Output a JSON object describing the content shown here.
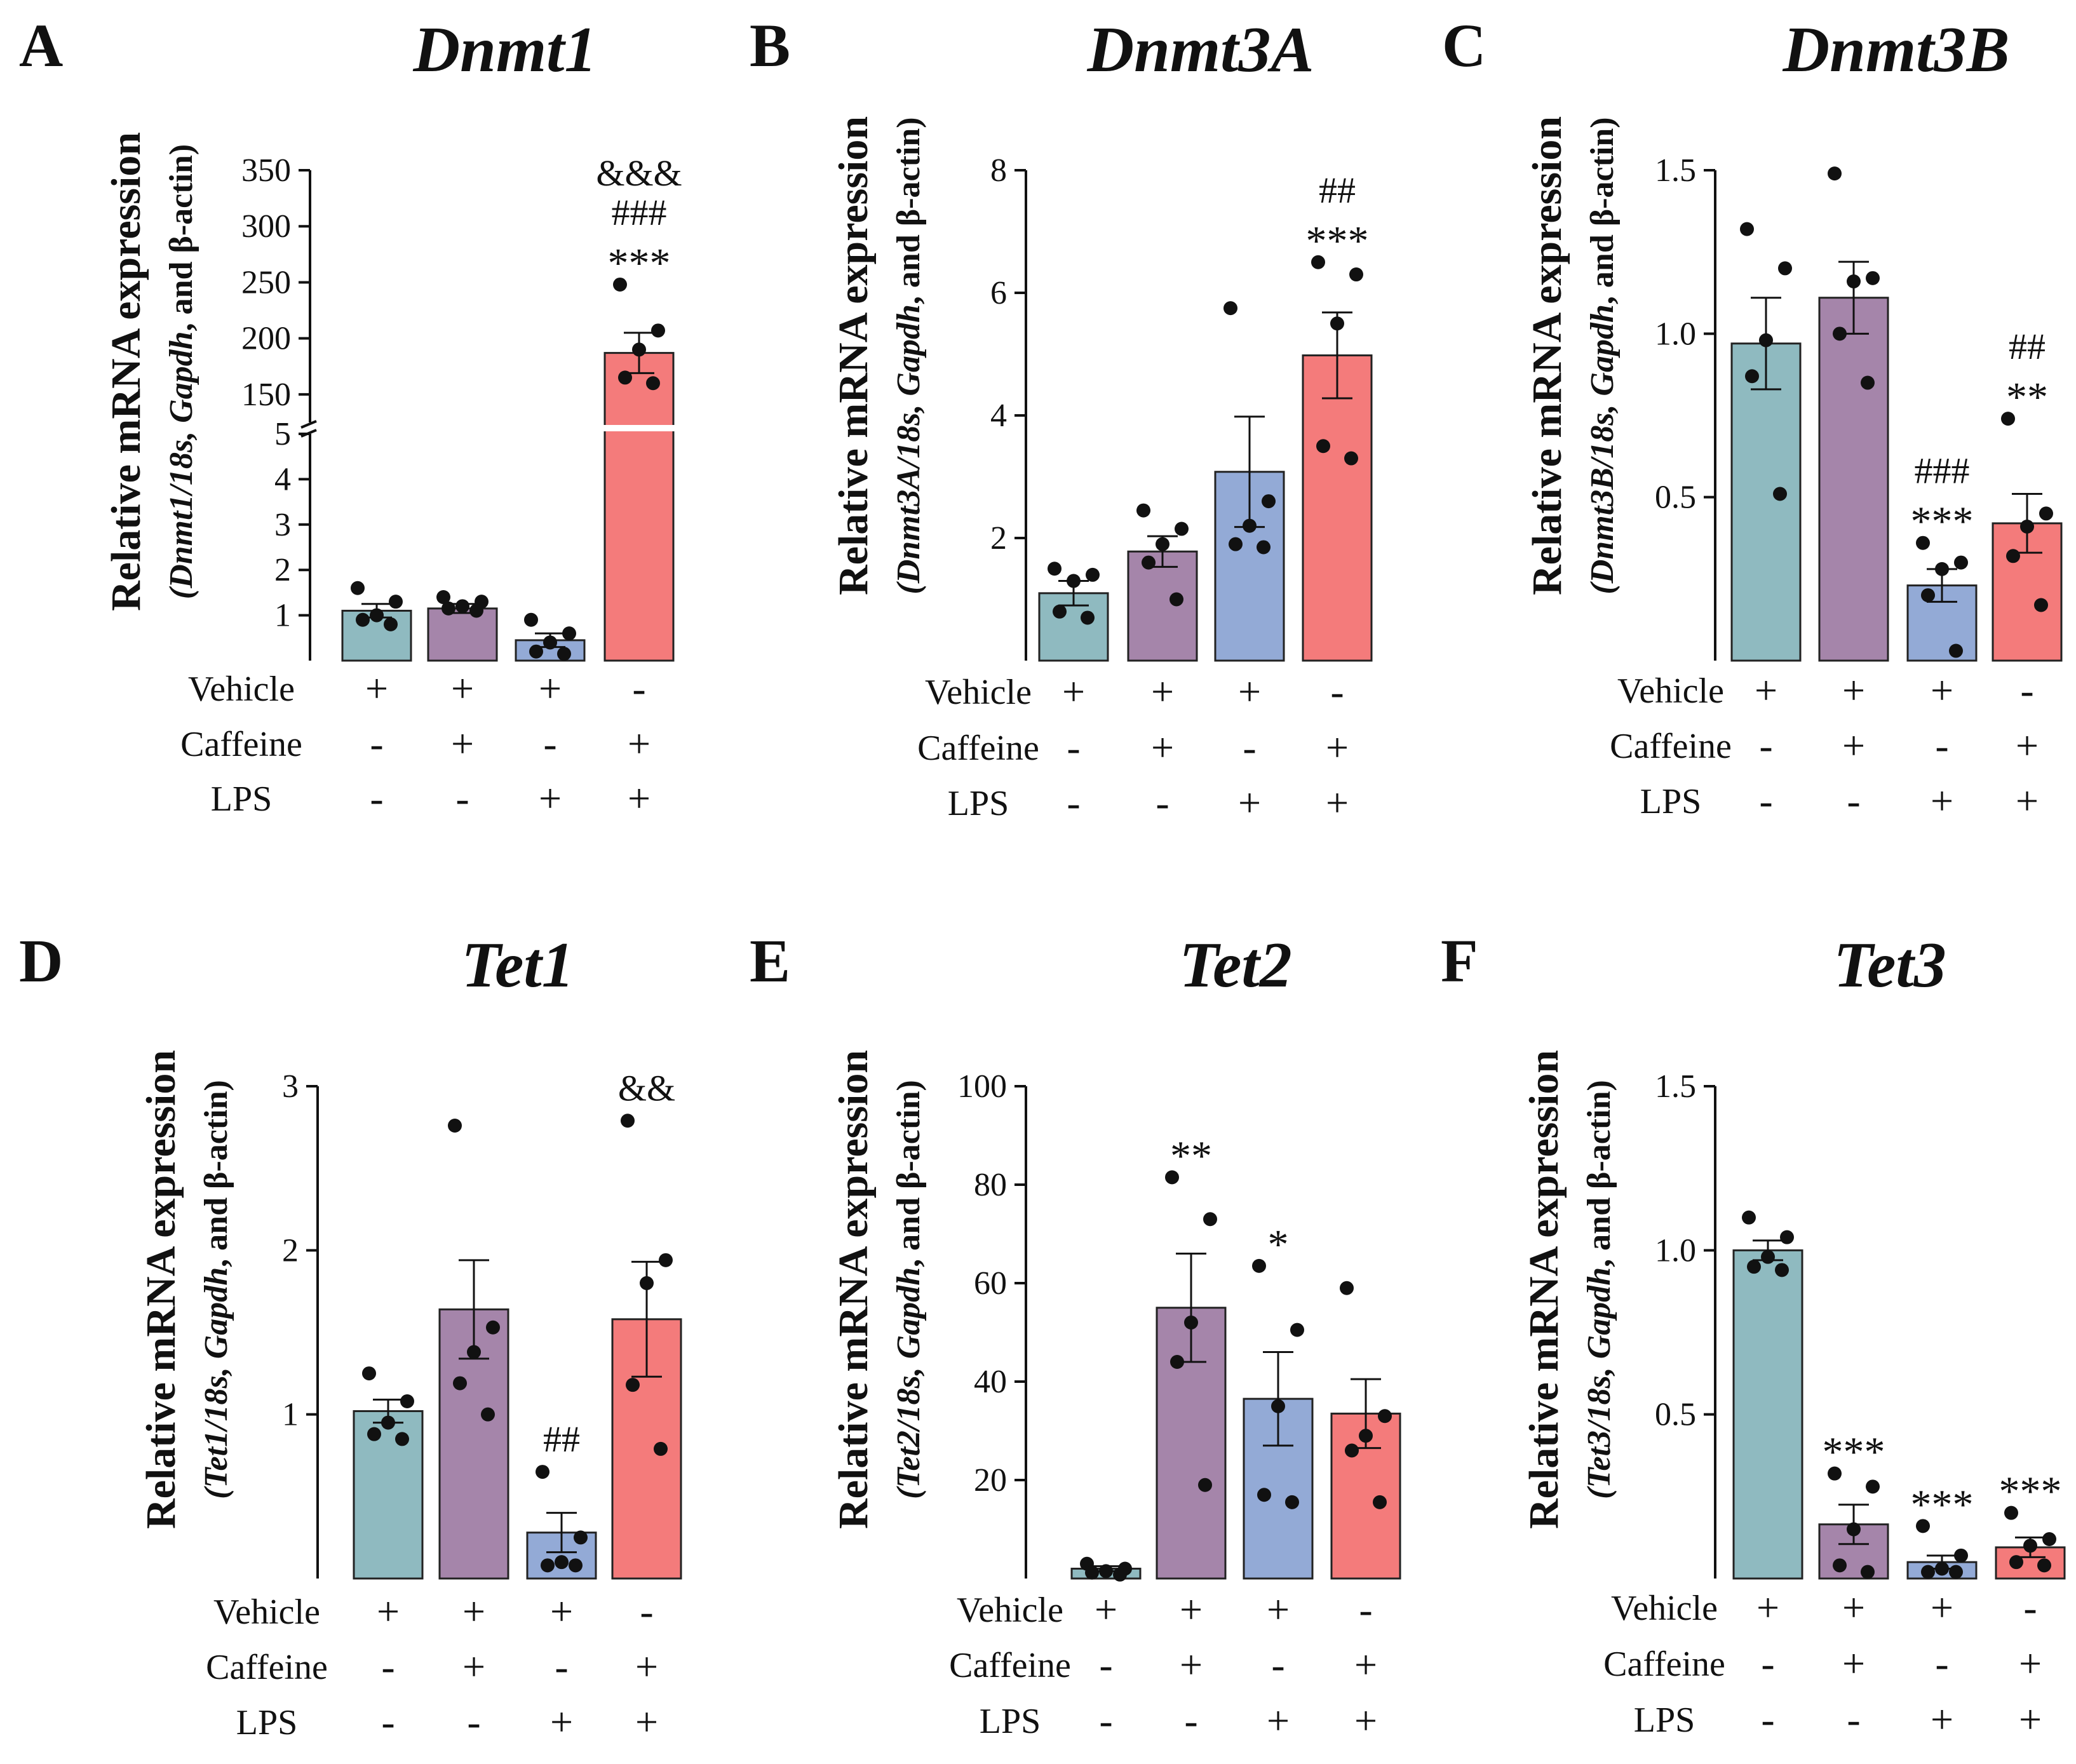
{
  "figure": {
    "colors": {
      "vehicle": "#8fbac0",
      "caffeine": "#a585aa",
      "lps": "#93aad6",
      "caffeine_lps": "#f47b7b",
      "point": "#111111"
    }
  },
  "chart_data": [
    {
      "type": "bar",
      "letter": "A",
      "title": "Dnmt1",
      "ylabel": "Relative mRNA expression",
      "ysub": [
        "(Dnmt1/18s, ",
        "Gapdh",
        ", and ",
        "β-actin",
        ")"
      ],
      "axis_break": true,
      "lower_ticks": [
        1,
        2,
        3,
        4,
        5
      ],
      "lower_range": [
        0,
        5
      ],
      "upper_ticks": [
        150,
        200,
        250,
        300,
        350
      ],
      "upper_range": [
        125,
        350
      ],
      "ylim": [
        0,
        350
      ],
      "yticks": [],
      "categories": [
        "Vehicle",
        "Caffeine",
        "LPS",
        "Caffeine+LPS"
      ],
      "means": [
        1.1,
        1.15,
        0.45,
        187
      ],
      "sems": [
        0.15,
        0.1,
        0.15,
        18
      ],
      "points": [
        [
          1.6,
          1.3,
          1.0,
          0.9,
          0.8
        ],
        [
          1.4,
          1.3,
          1.2,
          1.15,
          1.1
        ],
        [
          0.9,
          0.6,
          0.4,
          0.2,
          0.15
        ],
        [
          248,
          207,
          190,
          165,
          160
        ]
      ],
      "annotations": [
        [],
        [],
        [],
        [
          "&&&",
          "###",
          "***"
        ]
      ],
      "treatment_rows": [
        {
          "label": "Vehicle",
          "signs": [
            "+",
            "+",
            "+",
            "-"
          ]
        },
        {
          "label": "Caffeine",
          "signs": [
            "-",
            "+",
            "-",
            "+"
          ]
        },
        {
          "label": "LPS",
          "signs": [
            "-",
            "-",
            "+",
            "+"
          ]
        }
      ]
    },
    {
      "type": "bar",
      "letter": "B",
      "title": "Dnmt3A",
      "ylabel": "Relative mRNA expression",
      "ysub": [
        "(Dnmt3A/18s, ",
        "Gapdh",
        ", and ",
        "β-actin",
        ")"
      ],
      "axis_break": false,
      "ylim": [
        0,
        8
      ],
      "yticks": [
        2,
        4,
        6,
        8
      ],
      "categories": [
        "Vehicle",
        "Caffeine",
        "LPS",
        "Caffeine+LPS"
      ],
      "means": [
        1.1,
        1.78,
        3.08,
        4.98
      ],
      "sems": [
        0.2,
        0.25,
        0.9,
        0.7
      ],
      "points": [
        [
          1.5,
          1.4,
          1.3,
          0.8,
          0.7
        ],
        [
          2.45,
          2.15,
          1.9,
          1.6,
          1.0
        ],
        [
          5.75,
          2.6,
          2.2,
          1.9,
          1.85
        ],
        [
          6.5,
          6.3,
          5.5,
          3.5,
          3.3
        ]
      ],
      "annotations": [
        [],
        [],
        [],
        [
          "##",
          "***"
        ]
      ],
      "treatment_rows": [
        {
          "label": "Vehicle",
          "signs": [
            "+",
            "+",
            "+",
            "-"
          ]
        },
        {
          "label": "Caffeine",
          "signs": [
            "-",
            "+",
            "-",
            "+"
          ]
        },
        {
          "label": "LPS",
          "signs": [
            "-",
            "-",
            "+",
            "+"
          ]
        }
      ]
    },
    {
      "type": "bar",
      "letter": "C",
      "title": "Dnmt3B",
      "ylabel": "Relative mRNA expression",
      "ysub": [
        "(Dnmt3B/18s, ",
        "Gapdh",
        ", and ",
        "β-actin",
        ")"
      ],
      "axis_break": false,
      "ylim": [
        0,
        1.5
      ],
      "yticks": [
        0.5,
        1.0,
        1.5
      ],
      "ytick_labels": [
        "0.5",
        "1.0",
        "1.5"
      ],
      "categories": [
        "Vehicle",
        "Caffeine",
        "LPS",
        "Caffeine+LPS"
      ],
      "means": [
        0.97,
        1.11,
        0.23,
        0.42
      ],
      "sems": [
        0.14,
        0.11,
        0.05,
        0.09
      ],
      "points": [
        [
          1.32,
          1.2,
          0.98,
          0.87,
          0.51
        ],
        [
          1.49,
          1.17,
          1.16,
          1.0,
          0.85
        ],
        [
          0.36,
          0.3,
          0.28,
          0.2,
          0.03
        ],
        [
          0.74,
          0.45,
          0.41,
          0.32,
          0.17
        ]
      ],
      "annotations": [
        [],
        [],
        [
          "###",
          "***"
        ],
        [
          "##",
          "**"
        ]
      ],
      "treatment_rows": [
        {
          "label": "Vehicle",
          "signs": [
            "+",
            "+",
            "+",
            "-"
          ]
        },
        {
          "label": "Caffeine",
          "signs": [
            "-",
            "+",
            "-",
            "+"
          ]
        },
        {
          "label": "LPS",
          "signs": [
            "-",
            "-",
            "+",
            "+"
          ]
        }
      ]
    },
    {
      "type": "bar",
      "letter": "D",
      "title": "Tet1",
      "ylabel": "Relative mRNA expression",
      "ysub": [
        "(Tet1/18s, ",
        "Gapdh",
        ", and ",
        "β-actin",
        ")"
      ],
      "axis_break": false,
      "ylim": [
        0,
        3
      ],
      "yticks": [
        1,
        2,
        3
      ],
      "categories": [
        "Vehicle",
        "Caffeine",
        "LPS",
        "Caffeine+LPS"
      ],
      "means": [
        1.02,
        1.64,
        0.28,
        1.58
      ],
      "sems": [
        0.07,
        0.3,
        0.12,
        0.35
      ],
      "points": [
        [
          1.25,
          1.08,
          0.95,
          0.88,
          0.85
        ],
        [
          2.76,
          1.53,
          1.38,
          1.19,
          1.0
        ],
        [
          0.65,
          0.25,
          0.1,
          0.08,
          0.08
        ],
        [
          2.79,
          1.94,
          1.8,
          1.18,
          0.79
        ]
      ],
      "annotations": [
        [],
        [],
        [
          "##"
        ],
        [
          "&&"
        ]
      ],
      "treatment_rows": [
        {
          "label": "Vehicle",
          "signs": [
            "+",
            "+",
            "+",
            "-"
          ]
        },
        {
          "label": "Caffeine",
          "signs": [
            "-",
            "+",
            "-",
            "+"
          ]
        },
        {
          "label": "LPS",
          "signs": [
            "-",
            "-",
            "+",
            "+"
          ]
        }
      ]
    },
    {
      "type": "bar",
      "letter": "E",
      "title": "Tet2",
      "ylabel": "Relative mRNA expression",
      "ysub": [
        "(Tet2/18s, ",
        "Gapdh",
        ", and ",
        "β-actin",
        ")"
      ],
      "axis_break": false,
      "ylim": [
        0,
        100
      ],
      "yticks": [
        20,
        40,
        60,
        80,
        100
      ],
      "categories": [
        "Vehicle",
        "Caffeine",
        "LPS",
        "Caffeine+LPS"
      ],
      "means": [
        2,
        55,
        36.5,
        33.5
      ],
      "sems": [
        0.5,
        11,
        9.5,
        7
      ],
      "points": [
        [
          3,
          2,
          1.5,
          1.2,
          0.8
        ],
        [
          81.5,
          73,
          52,
          44,
          19
        ],
        [
          63.5,
          50.5,
          35,
          17,
          15.5
        ],
        [
          59,
          33,
          29,
          26,
          15.5
        ]
      ],
      "annotations": [
        [],
        [
          "**"
        ],
        [
          "*"
        ],
        []
      ],
      "treatment_rows": [
        {
          "label": "Vehicle",
          "signs": [
            "+",
            "+",
            "+",
            "-"
          ]
        },
        {
          "label": "Caffeine",
          "signs": [
            "-",
            "+",
            "-",
            "+"
          ]
        },
        {
          "label": "LPS",
          "signs": [
            "-",
            "-",
            "+",
            "+"
          ]
        }
      ]
    },
    {
      "type": "bar",
      "letter": "F",
      "title": "Tet3",
      "ylabel": "Relative mRNA expression",
      "ysub": [
        "(Tet3/18s, ",
        "Gapdh",
        ", and ",
        "β-actin",
        ")"
      ],
      "axis_break": false,
      "ylim": [
        0,
        1.5
      ],
      "yticks": [
        0.5,
        1.0,
        1.5
      ],
      "ytick_labels": [
        "0.5",
        "1.0",
        "1.5"
      ],
      "categories": [
        "Vehicle",
        "Caffeine",
        "LPS",
        "Caffeine+LPS"
      ],
      "means": [
        1.0,
        0.165,
        0.05,
        0.095
      ],
      "sems": [
        0.03,
        0.06,
        0.02,
        0.03
      ],
      "points": [
        [
          1.1,
          1.04,
          0.98,
          0.95,
          0.94
        ],
        [
          0.32,
          0.28,
          0.15,
          0.04,
          0.02
        ],
        [
          0.16,
          0.07,
          0.03,
          0.02,
          0.02
        ],
        [
          0.2,
          0.12,
          0.1,
          0.05,
          0.04
        ]
      ],
      "annotations": [
        [],
        [
          "***"
        ],
        [
          "***"
        ],
        [
          "***"
        ]
      ],
      "treatment_rows": [
        {
          "label": "Vehicle",
          "signs": [
            "+",
            "+",
            "+",
            "-"
          ]
        },
        {
          "label": "Caffeine",
          "signs": [
            "-",
            "+",
            "-",
            "+"
          ]
        },
        {
          "label": "LPS",
          "signs": [
            "-",
            "-",
            "+",
            "+"
          ]
        }
      ]
    }
  ]
}
